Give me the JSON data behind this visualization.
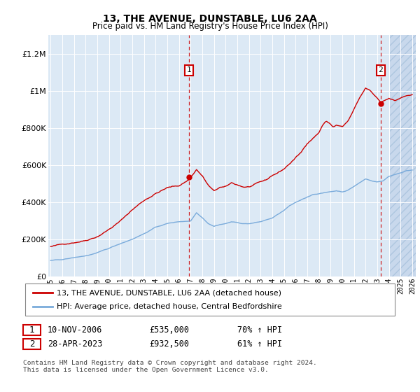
{
  "title": "13, THE AVENUE, DUNSTABLE, LU6 2AA",
  "subtitle": "Price paid vs. HM Land Registry's House Price Index (HPI)",
  "bg_color": "#dce9f5",
  "red_line_color": "#cc0000",
  "blue_line_color": "#7aabdb",
  "sale1_date": "10-NOV-2006",
  "sale1_price": "£535,000",
  "sale1_hpi": "70% ↑ HPI",
  "sale2_date": "28-APR-2023",
  "sale2_price": "£932,500",
  "sale2_hpi": "61% ↑ HPI",
  "legend1": "13, THE AVENUE, DUNSTABLE, LU6 2AA (detached house)",
  "legend2": "HPI: Average price, detached house, Central Bedfordshire",
  "footer": "Contains HM Land Registry data © Crown copyright and database right 2024.\nThis data is licensed under the Open Government Licence v3.0.",
  "ylim": [
    0,
    1300000
  ],
  "yticks": [
    0,
    200000,
    400000,
    600000,
    800000,
    1000000,
    1200000
  ],
  "ytick_labels": [
    "£0",
    "£200K",
    "£400K",
    "£600K",
    "£800K",
    "£1M",
    "£1.2M"
  ],
  "sale1_x": 2006.87,
  "sale1_y": 535000,
  "sale2_x": 2023.29,
  "sale2_y": 932500,
  "xmin": 1994.8,
  "xmax": 2026.3,
  "hatch_start": 2024.0
}
